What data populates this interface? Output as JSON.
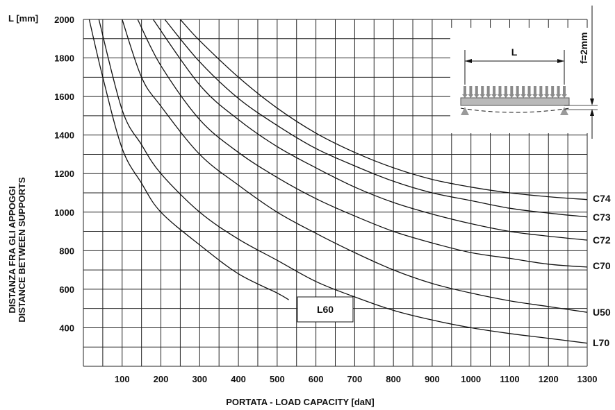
{
  "chart_data": {
    "type": "line",
    "xlabel": "PORTATA - LOAD CAPACITY  [daN]",
    "ylabel": [
      "DISTANZA FRA GLI APPOGGI",
      "DISTANCE BETWEEN SUPPORTS"
    ],
    "yunit_label": "L [mm]",
    "x_ticks": [
      "100",
      "200",
      "300",
      "400",
      "500",
      "600",
      "700",
      "800",
      "900",
      "1000",
      "1100",
      "1200",
      "1300"
    ],
    "y_ticks": [
      "400",
      "600",
      "800",
      "1000",
      "1200",
      "1400",
      "1600",
      "1800",
      "2000"
    ],
    "xlim": [
      0,
      1300
    ],
    "ylim": [
      200,
      2000
    ],
    "grid": true,
    "series": [
      {
        "name": "L60",
        "points": [
          [
            15,
            2000
          ],
          [
            50,
            1700
          ],
          [
            100,
            1330
          ],
          [
            150,
            1150
          ],
          [
            200,
            1000
          ],
          [
            300,
            830
          ],
          [
            400,
            680
          ],
          [
            500,
            580
          ],
          [
            530,
            545
          ]
        ]
      },
      {
        "name": "L70",
        "points": [
          [
            40,
            2000
          ],
          [
            100,
            1530
          ],
          [
            150,
            1350
          ],
          [
            200,
            1200
          ],
          [
            300,
            1000
          ],
          [
            400,
            860
          ],
          [
            500,
            750
          ],
          [
            600,
            640
          ],
          [
            700,
            560
          ],
          [
            800,
            490
          ],
          [
            900,
            440
          ],
          [
            1000,
            400
          ],
          [
            1100,
            370
          ],
          [
            1200,
            345
          ],
          [
            1300,
            320
          ]
        ]
      },
      {
        "name": "U50",
        "points": [
          [
            100,
            2000
          ],
          [
            150,
            1700
          ],
          [
            200,
            1550
          ],
          [
            300,
            1300
          ],
          [
            400,
            1140
          ],
          [
            500,
            1000
          ],
          [
            600,
            890
          ],
          [
            700,
            790
          ],
          [
            800,
            700
          ],
          [
            900,
            630
          ],
          [
            1000,
            580
          ],
          [
            1100,
            540
          ],
          [
            1200,
            510
          ],
          [
            1300,
            480
          ]
        ]
      },
      {
        "name": "C70",
        "points": [
          [
            140,
            2000
          ],
          [
            200,
            1760
          ],
          [
            300,
            1480
          ],
          [
            400,
            1310
          ],
          [
            500,
            1180
          ],
          [
            600,
            1070
          ],
          [
            700,
            980
          ],
          [
            800,
            900
          ],
          [
            900,
            840
          ],
          [
            1000,
            790
          ],
          [
            1100,
            760
          ],
          [
            1200,
            730
          ],
          [
            1300,
            715
          ]
        ]
      },
      {
        "name": "C72",
        "points": [
          [
            180,
            2000
          ],
          [
            300,
            1660
          ],
          [
            400,
            1480
          ],
          [
            500,
            1340
          ],
          [
            600,
            1230
          ],
          [
            700,
            1130
          ],
          [
            800,
            1050
          ],
          [
            900,
            990
          ],
          [
            1000,
            940
          ],
          [
            1100,
            900
          ],
          [
            1200,
            875
          ],
          [
            1300,
            855
          ]
        ]
      },
      {
        "name": "C73",
        "points": [
          [
            210,
            2000
          ],
          [
            300,
            1780
          ],
          [
            400,
            1590
          ],
          [
            500,
            1450
          ],
          [
            600,
            1330
          ],
          [
            700,
            1240
          ],
          [
            800,
            1160
          ],
          [
            900,
            1100
          ],
          [
            1000,
            1060
          ],
          [
            1100,
            1020
          ],
          [
            1200,
            995
          ],
          [
            1300,
            975
          ]
        ]
      },
      {
        "name": "C74",
        "points": [
          [
            250,
            2000
          ],
          [
            300,
            1890
          ],
          [
            400,
            1700
          ],
          [
            500,
            1540
          ],
          [
            600,
            1410
          ],
          [
            700,
            1310
          ],
          [
            800,
            1230
          ],
          [
            900,
            1170
          ],
          [
            1000,
            1130
          ],
          [
            1100,
            1100
          ],
          [
            1200,
            1080
          ],
          [
            1300,
            1065
          ]
        ]
      }
    ],
    "inset": {
      "span_label": "L",
      "deflection_label": "f=2mm"
    }
  }
}
